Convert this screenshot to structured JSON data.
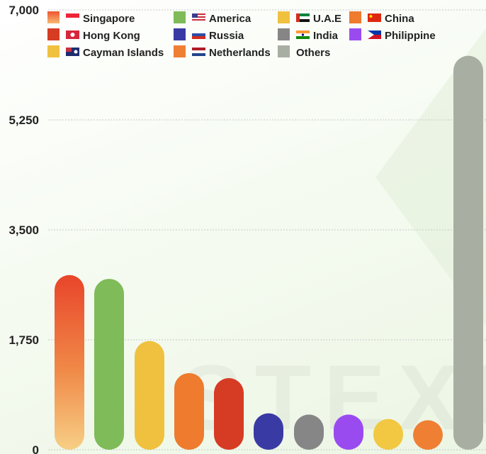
{
  "chart_data": {
    "type": "bar",
    "title": "",
    "xlabel": "",
    "ylabel": "",
    "ylim": [
      0,
      7000
    ],
    "y_ticks": [
      "7,000",
      "5,250",
      "3,500",
      "1,750",
      "0"
    ],
    "grid": true,
    "legend_position": "top",
    "categories": [
      "Singapore",
      "America",
      "Cayman Islands",
      "China",
      "Hong Kong",
      "Russia",
      "India",
      "Philippine",
      "U.A.E",
      "Netherlands",
      "Others"
    ],
    "values": [
      2780,
      2720,
      1730,
      1220,
      1140,
      580,
      560,
      560,
      490,
      470,
      6270
    ],
    "colors": [
      "#e8482a",
      "#7fbb58",
      "#f0c13f",
      "#ee7b2e",
      "#d63b24",
      "#3a3aa4",
      "#868686",
      "#9a4bf0",
      "#f2c842",
      "#ef7f33",
      "#a9aea3"
    ],
    "legend": [
      {
        "label": "Singapore",
        "color": "#f2753c",
        "flag": "sg"
      },
      {
        "label": "America",
        "color": "#7fbb58",
        "flag": "us"
      },
      {
        "label": "U.A.E",
        "color": "#f0c13f",
        "flag": "ae"
      },
      {
        "label": "China",
        "color": "#ee7b2e",
        "flag": "cn"
      },
      {
        "label": "Hong Kong",
        "color": "#d63b24",
        "flag": "hk"
      },
      {
        "label": "Russia",
        "color": "#3a3aa4",
        "flag": "ru"
      },
      {
        "label": "India",
        "color": "#868686",
        "flag": "in"
      },
      {
        "label": "Philippine",
        "color": "#9a4bf0",
        "flag": "ph"
      },
      {
        "label": "Cayman Islands",
        "color": "#f0c13f",
        "flag": "ky"
      },
      {
        "label": "Netherlands",
        "color": "#ef7f33",
        "flag": "nl"
      },
      {
        "label": "Others",
        "color": "#a9aea3",
        "flag": ""
      }
    ],
    "watermark": "STEXU"
  }
}
